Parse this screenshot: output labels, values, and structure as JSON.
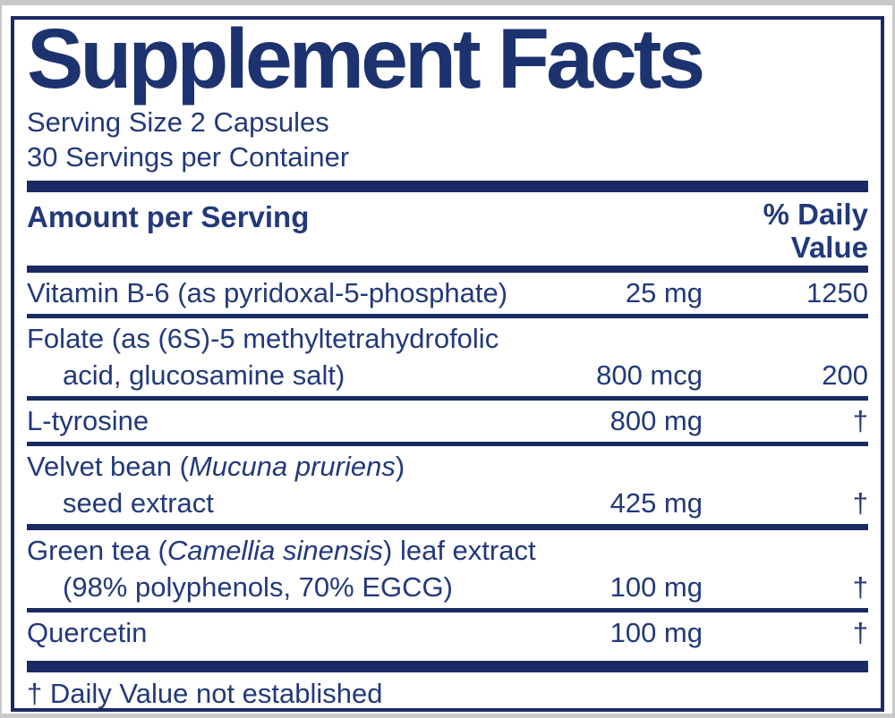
{
  "colors": {
    "navy": "#1a2b63",
    "text": "#22397a",
    "title": "#1d3370",
    "outer_gray": "#c9c9c9",
    "paper": "#ffffff"
  },
  "panel": {
    "title": "Supplement Facts",
    "serving_size": "Serving Size 2 Capsules",
    "servings_per_container": "30 Servings per Container"
  },
  "table": {
    "amount_header": "Amount per Serving",
    "dv_header_line1": "% Daily",
    "dv_header_line2": "Value",
    "rows": [
      {
        "sep": "normal",
        "lines": [
          {
            "segments": [
              {
                "t": "Vitamin B-6 (as pyridoxal-5-phosphate)"
              }
            ],
            "amount": "25 mg",
            "dv": "1250"
          }
        ]
      },
      {
        "sep": "normal",
        "lines": [
          {
            "segments": [
              {
                "t": "Folate (as (6S)-5 methyltetrahydrofolic"
              }
            ]
          },
          {
            "indent": true,
            "segments": [
              {
                "t": "acid, glucosamine salt)"
              }
            ],
            "amount": "800 mcg",
            "dv": "200"
          }
        ]
      },
      {
        "sep": "normal",
        "lines": [
          {
            "segments": [
              {
                "t": "L-tyrosine"
              }
            ],
            "amount": "800 mg",
            "dv": "†"
          }
        ]
      },
      {
        "sep": "heavy",
        "lines": [
          {
            "segments": [
              {
                "t": "Velvet bean ("
              },
              {
                "t": "Mucuna pruriens",
                "i": true
              },
              {
                "t": ")"
              }
            ]
          },
          {
            "indent": true,
            "segments": [
              {
                "t": "seed extract"
              }
            ],
            "amount": "425 mg",
            "dv": "†"
          }
        ]
      },
      {
        "sep": "normal",
        "lines": [
          {
            "segments": [
              {
                "t": "Green tea ("
              },
              {
                "t": "Camellia sinensis",
                "i": true
              },
              {
                "t": ") leaf extract"
              }
            ]
          },
          {
            "indent": true,
            "segments": [
              {
                "t": "(98% polyphenols, 70% EGCG)"
              }
            ],
            "amount": "100 mg",
            "dv": "†"
          }
        ]
      },
      {
        "sep": "none",
        "lines": [
          {
            "segments": [
              {
                "t": "Quercetin"
              }
            ],
            "amount": "100 mg",
            "dv": "†"
          }
        ]
      }
    ]
  },
  "footnote": "† Daily Value not established"
}
